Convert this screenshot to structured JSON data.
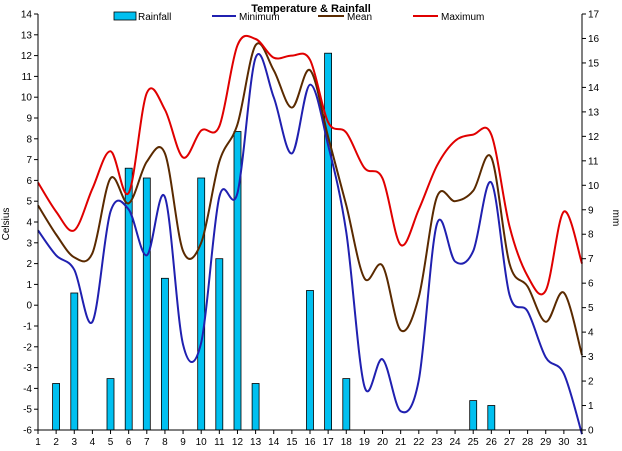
{
  "chart_data": {
    "type": "bar+line",
    "title": "Temperature & Rainfall",
    "ylabel_left": "Celsius",
    "ylabel_right": "mm",
    "ylim_left": [
      -6,
      14
    ],
    "ylim_right": [
      0,
      17
    ],
    "y_ticks_left": [
      -6,
      -5,
      -4,
      -3,
      -2,
      -1,
      0,
      1,
      2,
      3,
      4,
      5,
      6,
      7,
      8,
      9,
      10,
      11,
      12,
      13,
      14
    ],
    "y_ticks_right": [
      0,
      1,
      2,
      3,
      4,
      5,
      6,
      7,
      8,
      9,
      10,
      11,
      12,
      13,
      14,
      15,
      16,
      17
    ],
    "categories": [
      "1",
      "2",
      "3",
      "4",
      "5",
      "6",
      "7",
      "8",
      "9",
      "10",
      "11",
      "12",
      "13",
      "14",
      "15",
      "16",
      "17",
      "18",
      "19",
      "20",
      "21",
      "22",
      "23",
      "24",
      "25",
      "26",
      "27",
      "28",
      "29",
      "30",
      "31"
    ],
    "legend_position": "top",
    "grid": false,
    "rainfall": {
      "name": "Rainfall",
      "color": "#00c0f0",
      "axis": "right",
      "values": [
        0,
        1.9,
        5.6,
        0,
        2.1,
        10.7,
        10.3,
        6.2,
        0,
        10.3,
        7.0,
        12.2,
        1.9,
        0,
        0,
        5.7,
        15.4,
        2.1,
        0,
        0,
        0,
        0,
        0,
        0,
        1.2,
        1.0,
        0,
        0,
        0,
        0,
        0
      ]
    },
    "series": [
      {
        "name": "Minimum",
        "color": "#2020b0",
        "values": [
          3.6,
          2.4,
          1.7,
          -0.8,
          4.5,
          4.6,
          2.4,
          5.2,
          -1.9,
          -1.8,
          5.2,
          5.4,
          11.9,
          10.0,
          7.3,
          10.6,
          7.7,
          3.5,
          -3.9,
          -2.6,
          -5.1,
          -3.6,
          3.9,
          2.1,
          2.6,
          5.9,
          0.5,
          -0.3,
          -2.5,
          -3.3,
          -6.2
        ]
      },
      {
        "name": "Mean",
        "color": "#5a2a00",
        "values": [
          4.8,
          3.4,
          2.3,
          2.5,
          6.1,
          4.9,
          6.9,
          7.3,
          2.6,
          3.0,
          6.9,
          8.7,
          12.5,
          11.3,
          9.5,
          11.3,
          8.1,
          4.8,
          1.3,
          1.9,
          -1.2,
          0.4,
          5.2,
          5.0,
          5.5,
          7.1,
          2.0,
          0.9,
          -0.8,
          0.6,
          -2.4
        ]
      },
      {
        "name": "Maximum",
        "color": "#e00000",
        "values": [
          5.9,
          4.5,
          3.6,
          5.6,
          7.4,
          5.4,
          10.2,
          9.4,
          7.1,
          8.4,
          8.6,
          12.5,
          12.8,
          11.9,
          12.0,
          11.8,
          8.8,
          8.3,
          6.6,
          6.1,
          2.9,
          4.6,
          6.7,
          7.9,
          8.2,
          8.2,
          3.8,
          1.4,
          0.7,
          4.5,
          2.0
        ]
      }
    ]
  }
}
